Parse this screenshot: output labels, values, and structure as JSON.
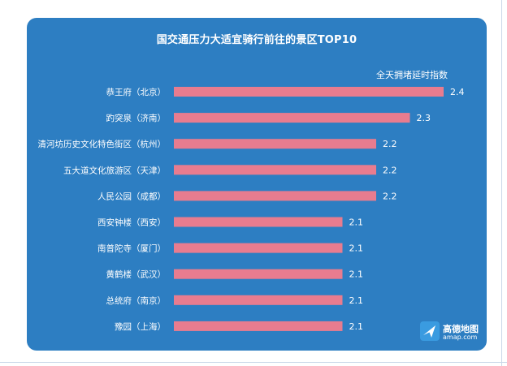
{
  "chart_data": {
    "type": "bar",
    "orientation": "horizontal",
    "title": "国交通压力大适宜骑行前往的景区TOP10",
    "legend": "全天拥堵延时指数",
    "categories": [
      "恭王府（北京）",
      "趵突泉（济南）",
      "清河坊历史文化特色街区（杭州）",
      "五大道文化旅游区（天津）",
      "人民公园（成都）",
      "西安钟楼（西安）",
      "南普陀寺（厦门）",
      "黄鹤楼（武汉）",
      "总统府（南京）",
      "豫园（上海）"
    ],
    "values": [
      2.4,
      2.3,
      2.2,
      2.2,
      2.2,
      2.1,
      2.1,
      2.1,
      2.1,
      2.1
    ],
    "value_labels": [
      "2.4",
      "2.3",
      "2.2",
      "2.2",
      "2.2",
      "2.1",
      "2.1",
      "2.1",
      "2.1",
      "2.1"
    ],
    "xlim": [
      1.6,
      2.4
    ],
    "bar_color": "#e87c8f",
    "background": "#2d7ec2",
    "grid": false
  },
  "watermark": {
    "name": "高德地图",
    "site": "amap.com"
  }
}
